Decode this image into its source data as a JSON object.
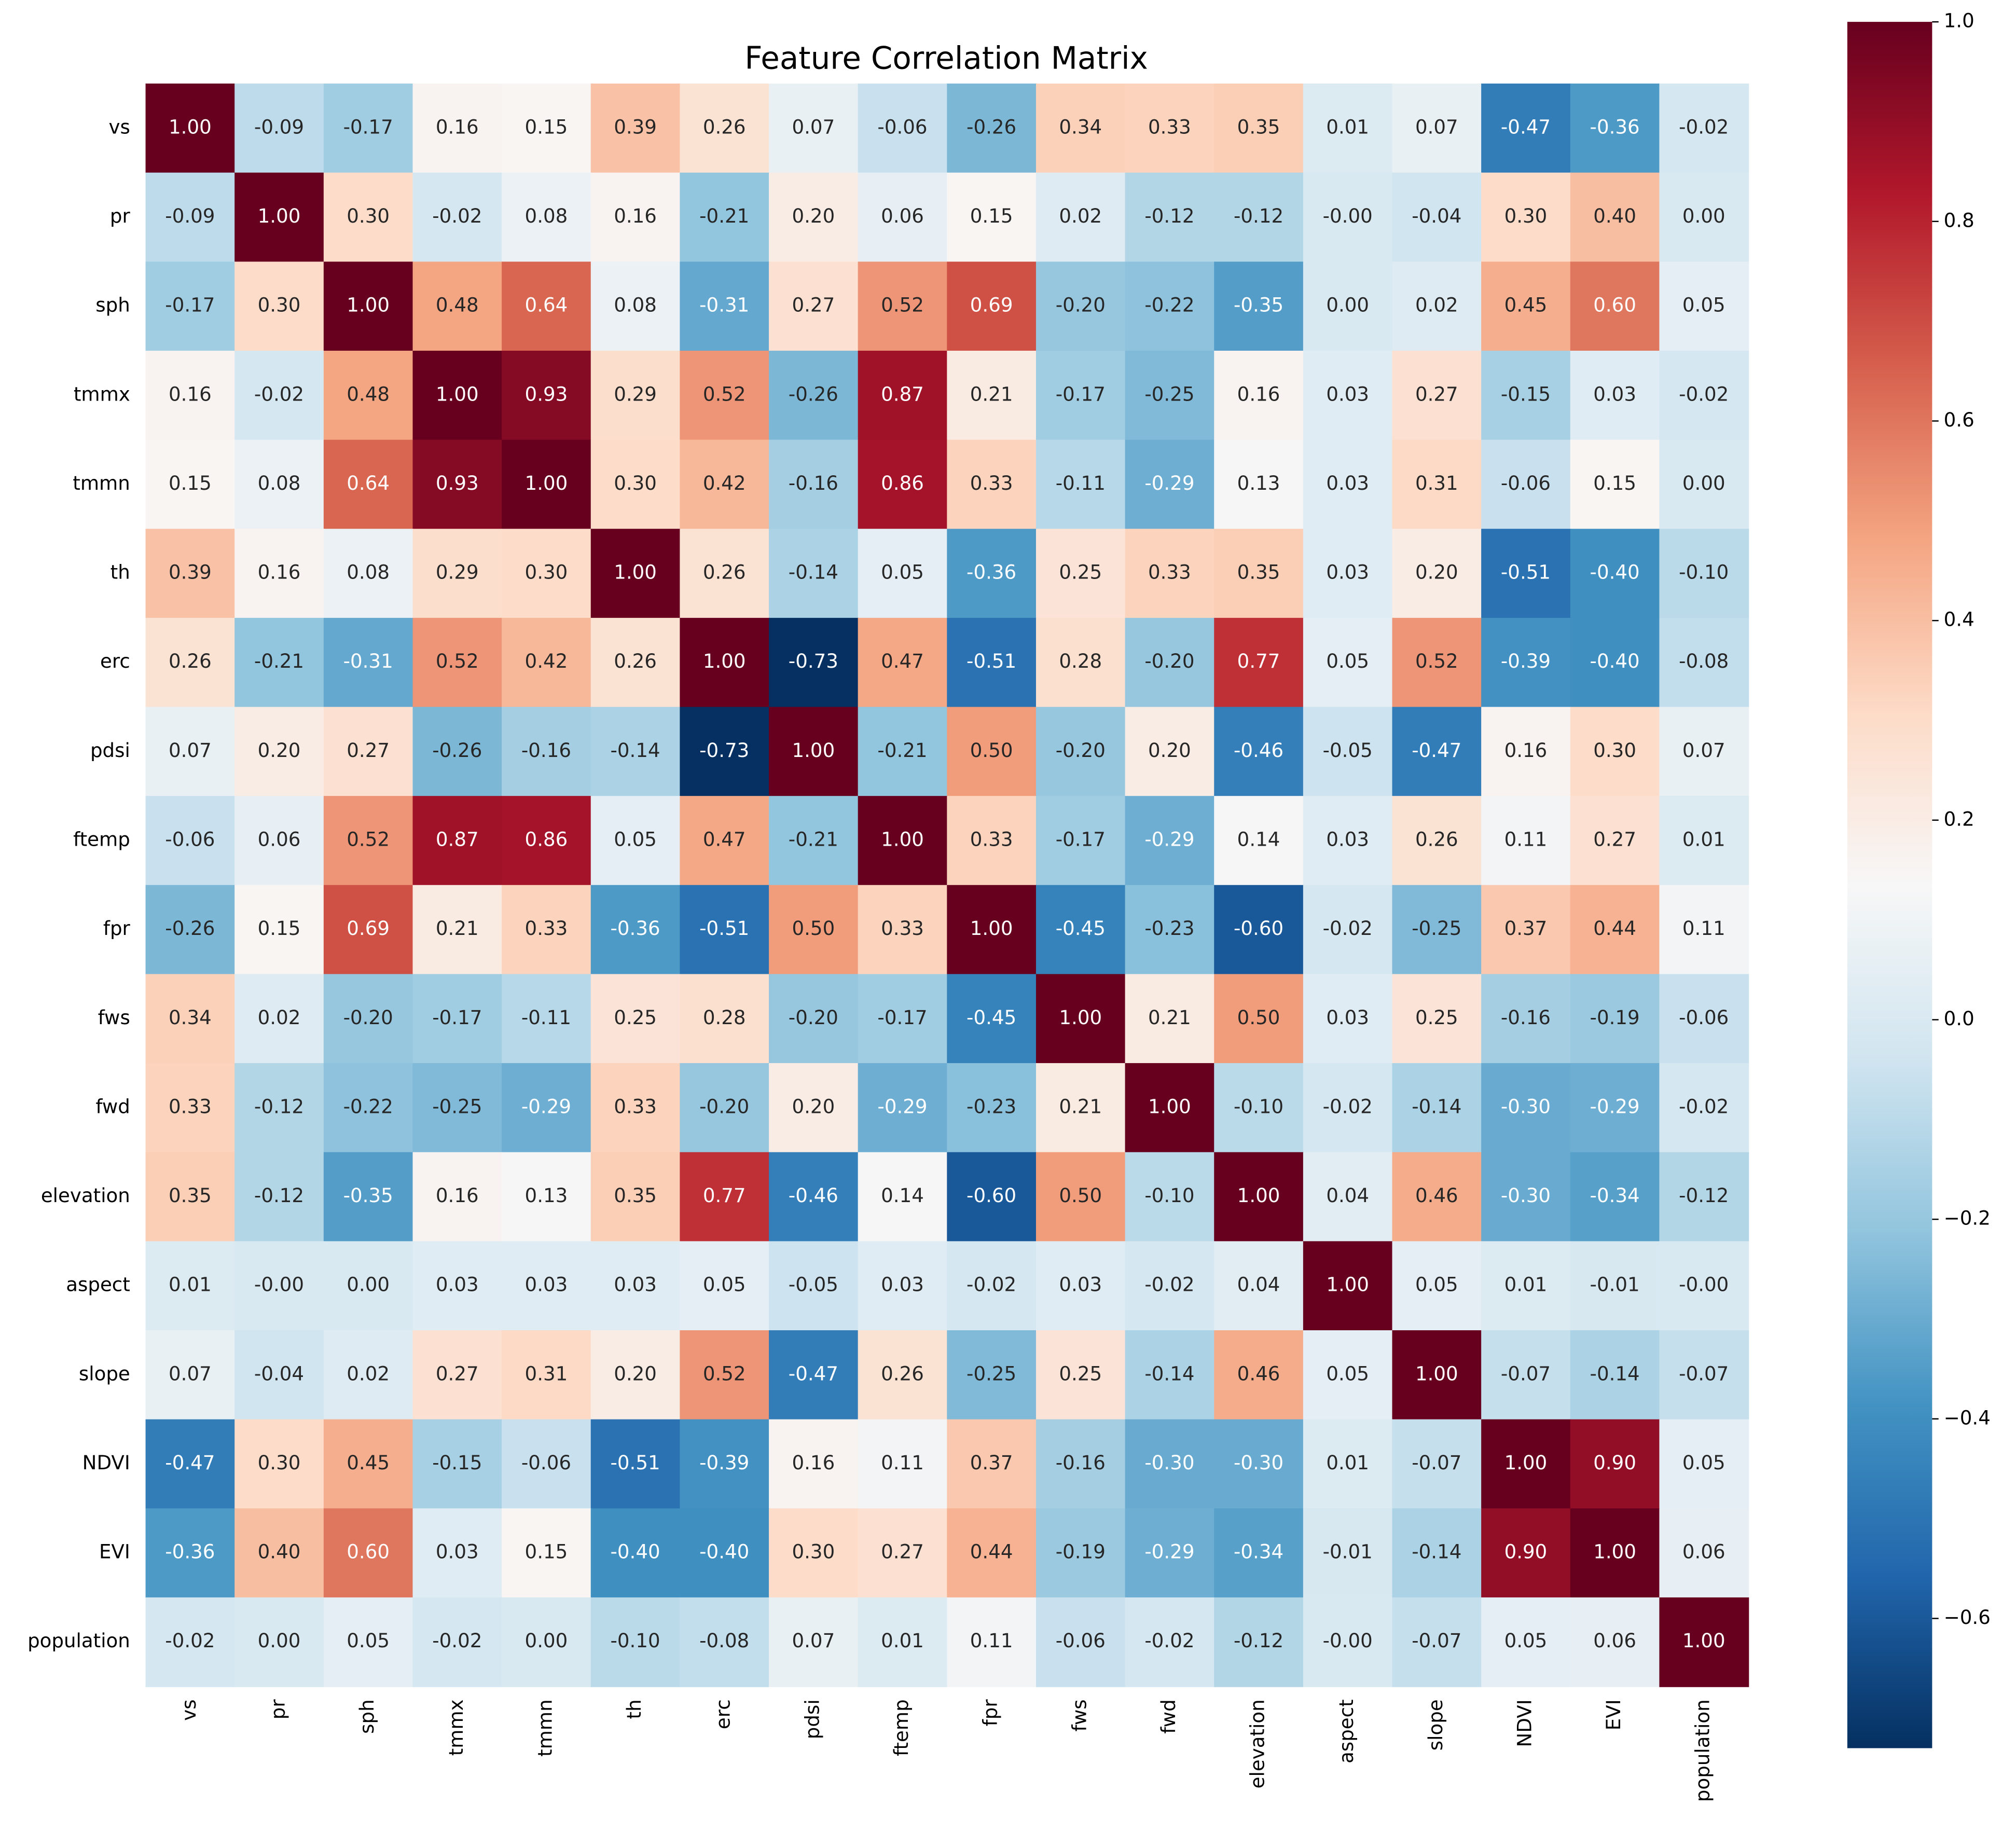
{
  "chart_data": {
    "type": "heatmap",
    "title": "Feature Correlation Matrix",
    "x_categories": [
      "vs",
      "pr",
      "sph",
      "tmmx",
      "tmmn",
      "th",
      "erc",
      "pdsi",
      "ftemp",
      "fpr",
      "fws",
      "fwd",
      "elevation",
      "aspect",
      "slope",
      "NDVI",
      "EVI",
      "population"
    ],
    "y_categories": [
      "vs",
      "pr",
      "sph",
      "tmmx",
      "tmmn",
      "th",
      "erc",
      "pdsi",
      "ftemp",
      "fpr",
      "fws",
      "fwd",
      "elevation",
      "aspect",
      "slope",
      "NDVI",
      "EVI",
      "population"
    ],
    "values": [
      [
        1,
        -0.09,
        -0.17,
        0.16,
        0.15,
        0.39,
        0.26,
        0.07,
        -0.06,
        -0.26,
        0.34,
        0.33,
        0.35,
        0.01,
        0.07,
        -0.47,
        -0.36,
        -0.02
      ],
      [
        -0.09,
        1,
        0.3,
        -0.02,
        0.08,
        0.16,
        -0.21,
        0.2,
        0.06,
        0.15,
        0.02,
        -0.12,
        -0.12,
        0,
        -0.04,
        0.3,
        0.4,
        0
      ],
      [
        -0.17,
        0.3,
        1,
        0.48,
        0.64,
        0.08,
        -0.31,
        0.27,
        0.52,
        0.69,
        -0.2,
        -0.22,
        -0.35,
        0,
        0.02,
        0.45,
        0.6,
        0.05
      ],
      [
        0.16,
        -0.02,
        0.48,
        1,
        0.93,
        0.29,
        0.52,
        -0.26,
        0.87,
        0.21,
        -0.17,
        -0.25,
        0.16,
        0.03,
        0.27,
        -0.15,
        0.03,
        -0.02
      ],
      [
        0.15,
        0.08,
        0.64,
        0.93,
        1,
        0.3,
        0.42,
        -0.16,
        0.86,
        0.33,
        -0.11,
        -0.29,
        0.13,
        0.03,
        0.31,
        -0.06,
        0.15,
        0
      ],
      [
        0.39,
        0.16,
        0.08,
        0.29,
        0.3,
        1,
        0.26,
        -0.14,
        0.05,
        -0.36,
        0.25,
        0.33,
        0.35,
        0.03,
        0.2,
        -0.51,
        -0.4,
        -0.1
      ],
      [
        0.26,
        -0.21,
        -0.31,
        0.52,
        0.42,
        0.26,
        1,
        -0.73,
        0.47,
        -0.51,
        0.28,
        -0.2,
        0.77,
        0.05,
        0.52,
        -0.39,
        -0.4,
        -0.08
      ],
      [
        0.07,
        0.2,
        0.27,
        -0.26,
        -0.16,
        -0.14,
        -0.73,
        1,
        -0.21,
        0.5,
        -0.2,
        0.2,
        -0.46,
        -0.05,
        -0.47,
        0.16,
        0.3,
        0.07
      ],
      [
        -0.06,
        0.06,
        0.52,
        0.87,
        0.86,
        0.05,
        0.47,
        -0.21,
        1,
        0.33,
        -0.17,
        -0.29,
        0.14,
        0.03,
        0.26,
        0.11,
        0.27,
        0.01
      ],
      [
        -0.26,
        0.15,
        0.69,
        0.21,
        0.33,
        -0.36,
        -0.51,
        0.5,
        0.33,
        1,
        -0.45,
        -0.23,
        -0.6,
        -0.02,
        -0.25,
        0.37,
        0.44,
        0.11
      ],
      [
        0.34,
        0.02,
        -0.2,
        -0.17,
        -0.11,
        0.25,
        0.28,
        -0.2,
        -0.17,
        -0.45,
        1,
        0.21,
        0.5,
        0.03,
        0.25,
        -0.16,
        -0.19,
        -0.06
      ],
      [
        0.33,
        -0.12,
        -0.22,
        -0.25,
        -0.29,
        0.33,
        -0.2,
        0.2,
        -0.29,
        -0.23,
        0.21,
        1,
        -0.1,
        -0.02,
        -0.14,
        -0.3,
        -0.29,
        -0.02
      ],
      [
        0.35,
        -0.12,
        -0.35,
        0.16,
        0.13,
        0.35,
        0.77,
        -0.46,
        0.14,
        -0.6,
        0.5,
        -0.1,
        1,
        0.04,
        0.46,
        -0.3,
        -0.34,
        -0.12
      ],
      [
        0.01,
        0,
        0,
        0.03,
        0.03,
        0.03,
        0.05,
        -0.05,
        0.03,
        -0.02,
        0.03,
        -0.02,
        0.04,
        1,
        0.05,
        0.01,
        -0.01,
        0
      ],
      [
        0.07,
        -0.04,
        0.02,
        0.27,
        0.31,
        0.2,
        0.52,
        -0.47,
        0.26,
        -0.25,
        0.25,
        -0.14,
        0.46,
        0.05,
        1,
        -0.07,
        -0.14,
        -0.07
      ],
      [
        -0.47,
        0.3,
        0.45,
        -0.15,
        -0.06,
        -0.51,
        -0.39,
        0.16,
        0.11,
        0.37,
        -0.16,
        -0.3,
        -0.3,
        0.01,
        -0.07,
        1,
        0.9,
        0.05
      ],
      [
        -0.36,
        0.4,
        0.6,
        0.03,
        0.15,
        -0.4,
        -0.4,
        0.3,
        0.27,
        0.44,
        -0.19,
        -0.29,
        -0.34,
        -0.01,
        -0.14,
        0.9,
        1,
        0.06
      ],
      [
        -0.02,
        0,
        0.05,
        -0.02,
        0,
        -0.1,
        -0.08,
        0.07,
        0.01,
        0.11,
        -0.06,
        -0.02,
        -0.12,
        0,
        -0.07,
        0.05,
        0.06,
        1
      ]
    ],
    "value_labels": [
      [
        "1.00",
        "-0.09",
        "-0.17",
        "0.16",
        "0.15",
        "0.39",
        "0.26",
        "0.07",
        "-0.06",
        "-0.26",
        "0.34",
        "0.33",
        "0.35",
        "0.01",
        "0.07",
        "-0.47",
        "-0.36",
        "-0.02"
      ],
      [
        "-0.09",
        "1.00",
        "0.30",
        "-0.02",
        "0.08",
        "0.16",
        "-0.21",
        "0.20",
        "0.06",
        "0.15",
        "0.02",
        "-0.12",
        "-0.12",
        "-0.00",
        "-0.04",
        "0.30",
        "0.40",
        "0.00"
      ],
      [
        "-0.17",
        "0.30",
        "1.00",
        "0.48",
        "0.64",
        "0.08",
        "-0.31",
        "0.27",
        "0.52",
        "0.69",
        "-0.20",
        "-0.22",
        "-0.35",
        "0.00",
        "0.02",
        "0.45",
        "0.60",
        "0.05"
      ],
      [
        "0.16",
        "-0.02",
        "0.48",
        "1.00",
        "0.93",
        "0.29",
        "0.52",
        "-0.26",
        "0.87",
        "0.21",
        "-0.17",
        "-0.25",
        "0.16",
        "0.03",
        "0.27",
        "-0.15",
        "0.03",
        "-0.02"
      ],
      [
        "0.15",
        "0.08",
        "0.64",
        "0.93",
        "1.00",
        "0.30",
        "0.42",
        "-0.16",
        "0.86",
        "0.33",
        "-0.11",
        "-0.29",
        "0.13",
        "0.03",
        "0.31",
        "-0.06",
        "0.15",
        "0.00"
      ],
      [
        "0.39",
        "0.16",
        "0.08",
        "0.29",
        "0.30",
        "1.00",
        "0.26",
        "-0.14",
        "0.05",
        "-0.36",
        "0.25",
        "0.33",
        "0.35",
        "0.03",
        "0.20",
        "-0.51",
        "-0.40",
        "-0.10"
      ],
      [
        "0.26",
        "-0.21",
        "-0.31",
        "0.52",
        "0.42",
        "0.26",
        "1.00",
        "-0.73",
        "0.47",
        "-0.51",
        "0.28",
        "-0.20",
        "0.77",
        "0.05",
        "0.52",
        "-0.39",
        "-0.40",
        "-0.08"
      ],
      [
        "0.07",
        "0.20",
        "0.27",
        "-0.26",
        "-0.16",
        "-0.14",
        "-0.73",
        "1.00",
        "-0.21",
        "0.50",
        "-0.20",
        "0.20",
        "-0.46",
        "-0.05",
        "-0.47",
        "0.16",
        "0.30",
        "0.07"
      ],
      [
        "-0.06",
        "0.06",
        "0.52",
        "0.87",
        "0.86",
        "0.05",
        "0.47",
        "-0.21",
        "1.00",
        "0.33",
        "-0.17",
        "-0.29",
        "0.14",
        "0.03",
        "0.26",
        "0.11",
        "0.27",
        "0.01"
      ],
      [
        "-0.26",
        "0.15",
        "0.69",
        "0.21",
        "0.33",
        "-0.36",
        "-0.51",
        "0.50",
        "0.33",
        "1.00",
        "-0.45",
        "-0.23",
        "-0.60",
        "-0.02",
        "-0.25",
        "0.37",
        "0.44",
        "0.11"
      ],
      [
        "0.34",
        "0.02",
        "-0.20",
        "-0.17",
        "-0.11",
        "0.25",
        "0.28",
        "-0.20",
        "-0.17",
        "-0.45",
        "1.00",
        "0.21",
        "0.50",
        "0.03",
        "0.25",
        "-0.16",
        "-0.19",
        "-0.06"
      ],
      [
        "0.33",
        "-0.12",
        "-0.22",
        "-0.25",
        "-0.29",
        "0.33",
        "-0.20",
        "0.20",
        "-0.29",
        "-0.23",
        "0.21",
        "1.00",
        "-0.10",
        "-0.02",
        "-0.14",
        "-0.30",
        "-0.29",
        "-0.02"
      ],
      [
        "0.35",
        "-0.12",
        "-0.35",
        "0.16",
        "0.13",
        "0.35",
        "0.77",
        "-0.46",
        "0.14",
        "-0.60",
        "0.50",
        "-0.10",
        "1.00",
        "0.04",
        "0.46",
        "-0.30",
        "-0.34",
        "-0.12"
      ],
      [
        "0.01",
        "-0.00",
        "0.00",
        "0.03",
        "0.03",
        "0.03",
        "0.05",
        "-0.05",
        "0.03",
        "-0.02",
        "0.03",
        "-0.02",
        "0.04",
        "1.00",
        "0.05",
        "0.01",
        "-0.01",
        "-0.00"
      ],
      [
        "0.07",
        "-0.04",
        "0.02",
        "0.27",
        "0.31",
        "0.20",
        "0.52",
        "-0.47",
        "0.26",
        "-0.25",
        "0.25",
        "-0.14",
        "0.46",
        "0.05",
        "1.00",
        "-0.07",
        "-0.14",
        "-0.07"
      ],
      [
        "-0.47",
        "0.30",
        "0.45",
        "-0.15",
        "-0.06",
        "-0.51",
        "-0.39",
        "0.16",
        "0.11",
        "0.37",
        "-0.16",
        "-0.30",
        "-0.30",
        "0.01",
        "-0.07",
        "1.00",
        "0.90",
        "0.05"
      ],
      [
        "-0.36",
        "0.40",
        "0.60",
        "0.03",
        "0.15",
        "-0.40",
        "-0.40",
        "0.30",
        "0.27",
        "0.44",
        "-0.19",
        "-0.29",
        "-0.34",
        "-0.01",
        "-0.14",
        "0.90",
        "1.00",
        "0.06"
      ],
      [
        "-0.02",
        "0.00",
        "0.05",
        "-0.02",
        "0.00",
        "-0.10",
        "-0.08",
        "0.07",
        "0.01",
        "0.11",
        "-0.06",
        "-0.02",
        "-0.12",
        "-0.00",
        "-0.07",
        "0.05",
        "0.06",
        "1.00"
      ]
    ],
    "colormap": [
      "#053061",
      "#2166ac",
      "#4393c3",
      "#92c5de",
      "#d1e5f0",
      "#f7f7f7",
      "#fddbc7",
      "#f4a582",
      "#d6604d",
      "#b2182b",
      "#67001f"
    ],
    "colorbar_lim": [
      -0.73,
      1.0
    ],
    "colorbar_ticks": [
      {
        "value": -0.6,
        "label": "−0.6"
      },
      {
        "value": -0.4,
        "label": "−0.4"
      },
      {
        "value": -0.2,
        "label": "−0.2"
      },
      {
        "value": 0,
        "label": "0.0"
      },
      0.2,
      0.4,
      0.6,
      0.8,
      {
        "value": 1,
        "label": "1.0"
      }
    ]
  }
}
